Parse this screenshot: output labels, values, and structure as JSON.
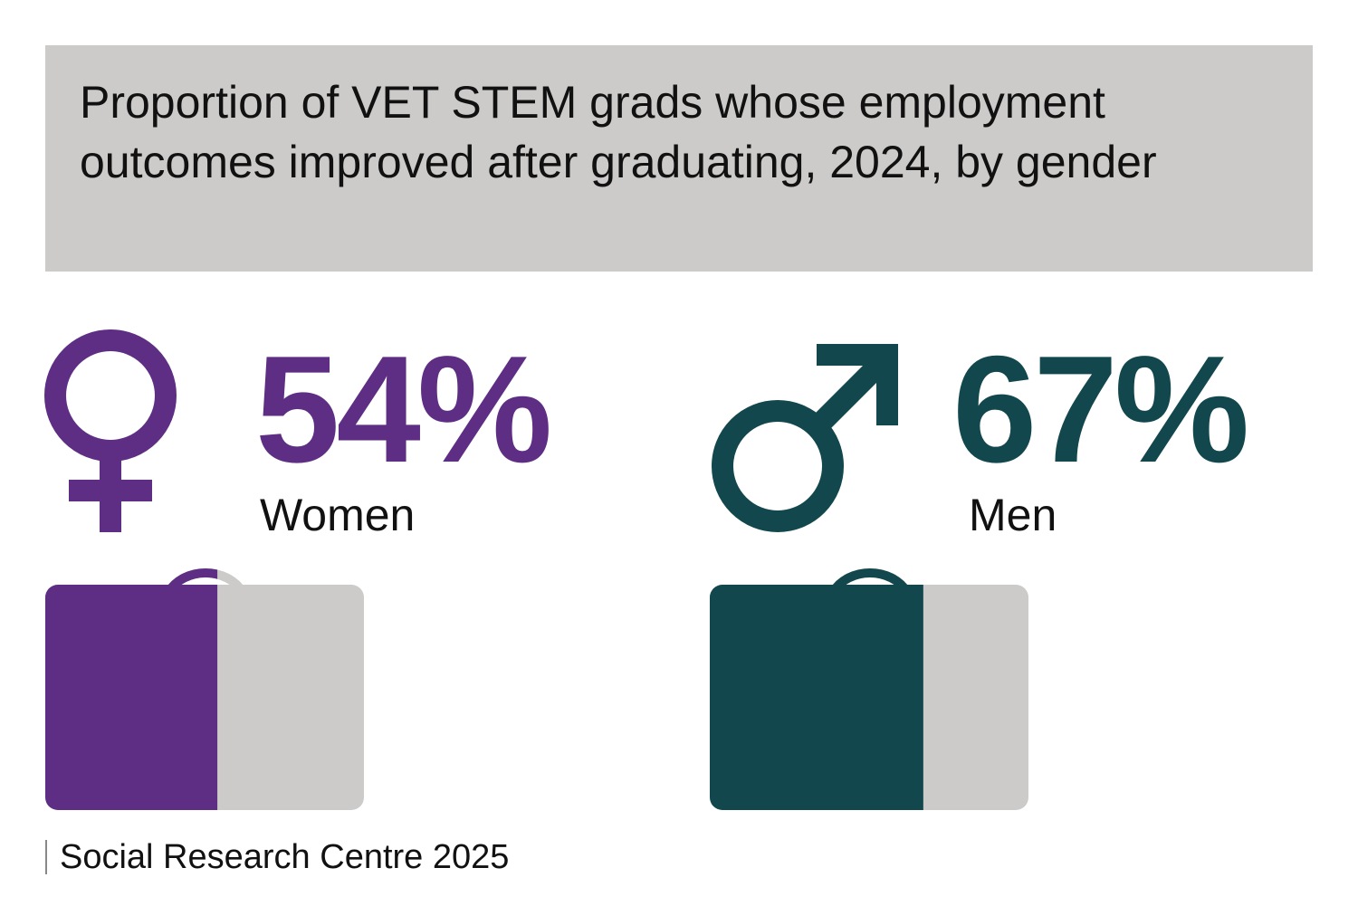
{
  "title": "Proportion of VET STEM grads whose employment outcomes improved after graduating, 2024, by gender",
  "source": "Social Research Centre 2025",
  "colors": {
    "women": "#5e2d84",
    "men": "#12484d",
    "remainder": "#cccbc9",
    "title_bg": "#cccbc9"
  },
  "chart_data": {
    "type": "bar",
    "title": "Proportion of VET STEM grads whose employment outcomes improved after graduating, 2024, by gender",
    "categories": [
      "Women",
      "Men"
    ],
    "values": [
      54,
      67
    ],
    "value_labels": [
      "54%",
      "67%"
    ],
    "unit": "%",
    "ylim": [
      0,
      100
    ],
    "icons": [
      "female-symbol-icon",
      "male-symbol-icon"
    ]
  }
}
